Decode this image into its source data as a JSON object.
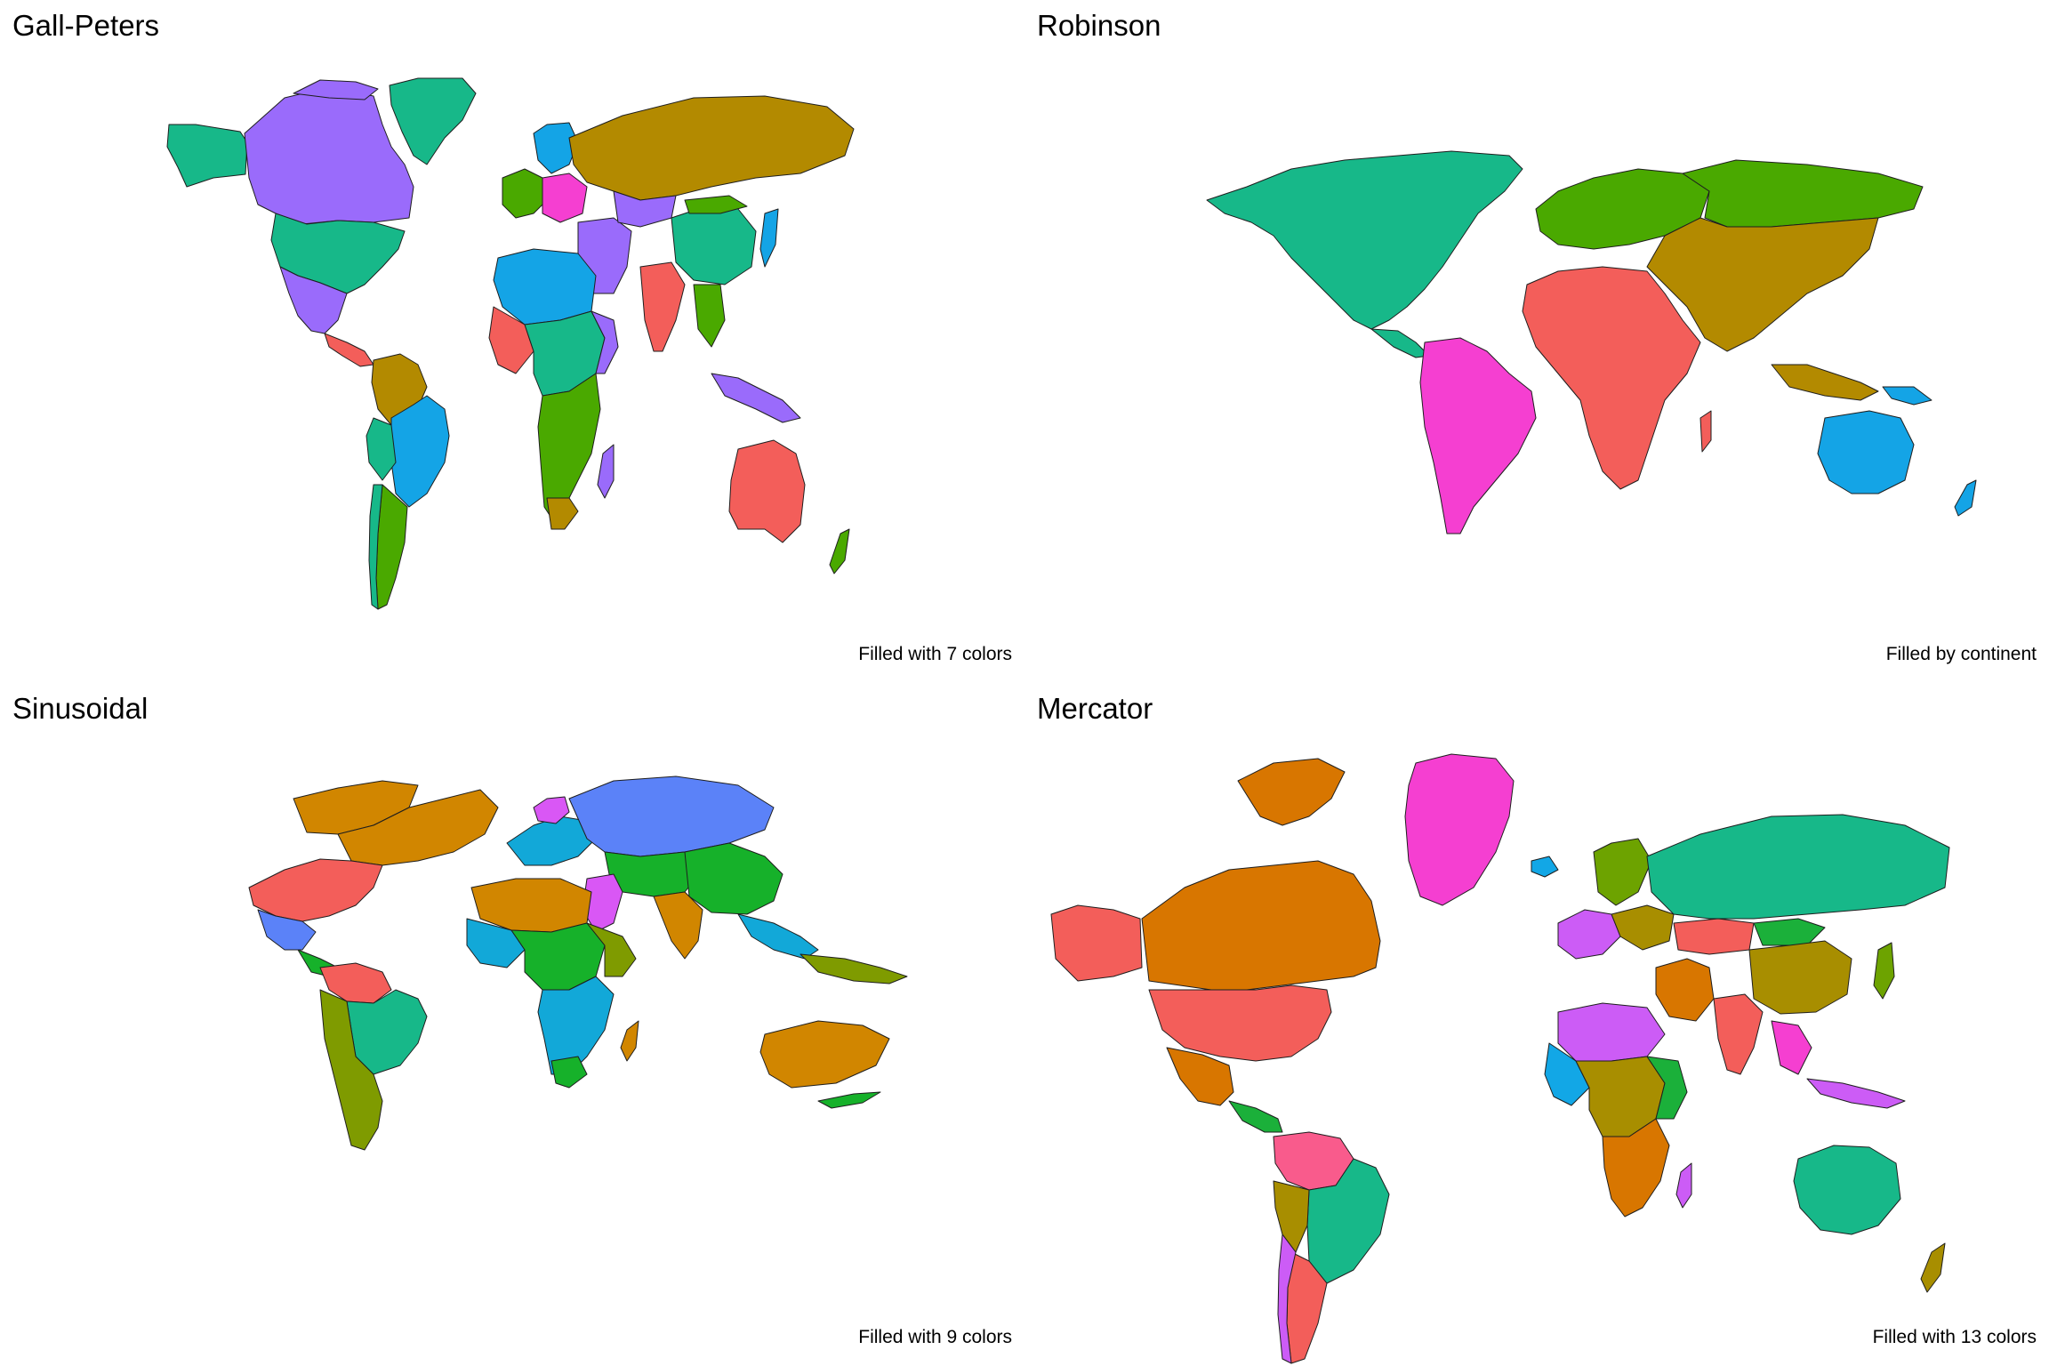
{
  "panels": [
    {
      "id": "gall-peters",
      "title": "Gall-Peters",
      "caption": "Filled with 7 colors",
      "palette": [
        "#f35e5a",
        "#b38a00",
        "#4aa900",
        "#17b889",
        "#14a4e6",
        "#9a6bfb",
        "#f53fd1"
      ]
    },
    {
      "id": "robinson",
      "title": "Robinson",
      "caption": "Filled by continent",
      "palette": [
        "#f35e5a",
        "#b38a00",
        "#4aa900",
        "#17b889",
        "#14a4e6",
        "#f53fd1",
        "#9a6bfb"
      ]
    },
    {
      "id": "sinusoidal",
      "title": "Sinusoidal",
      "caption": "Filled with 9 colors",
      "palette": [
        "#f35e5a",
        "#d18600",
        "#7f9b00",
        "#16b12a",
        "#17b889",
        "#12a8d8",
        "#5b82f8",
        "#d957f5",
        "#f645a6"
      ]
    },
    {
      "id": "mercator",
      "title": "Mercator",
      "caption": "Filled with 13 colors",
      "palette": [
        "#f35e5a",
        "#d87600",
        "#a88e00",
        "#6da300",
        "#1bb03a",
        "#17b889",
        "#15b3c4",
        "#12a7e6",
        "#6e8dfb",
        "#cc5cf6",
        "#f53fd1",
        "#f95b8c",
        "#e8a100"
      ]
    }
  ]
}
